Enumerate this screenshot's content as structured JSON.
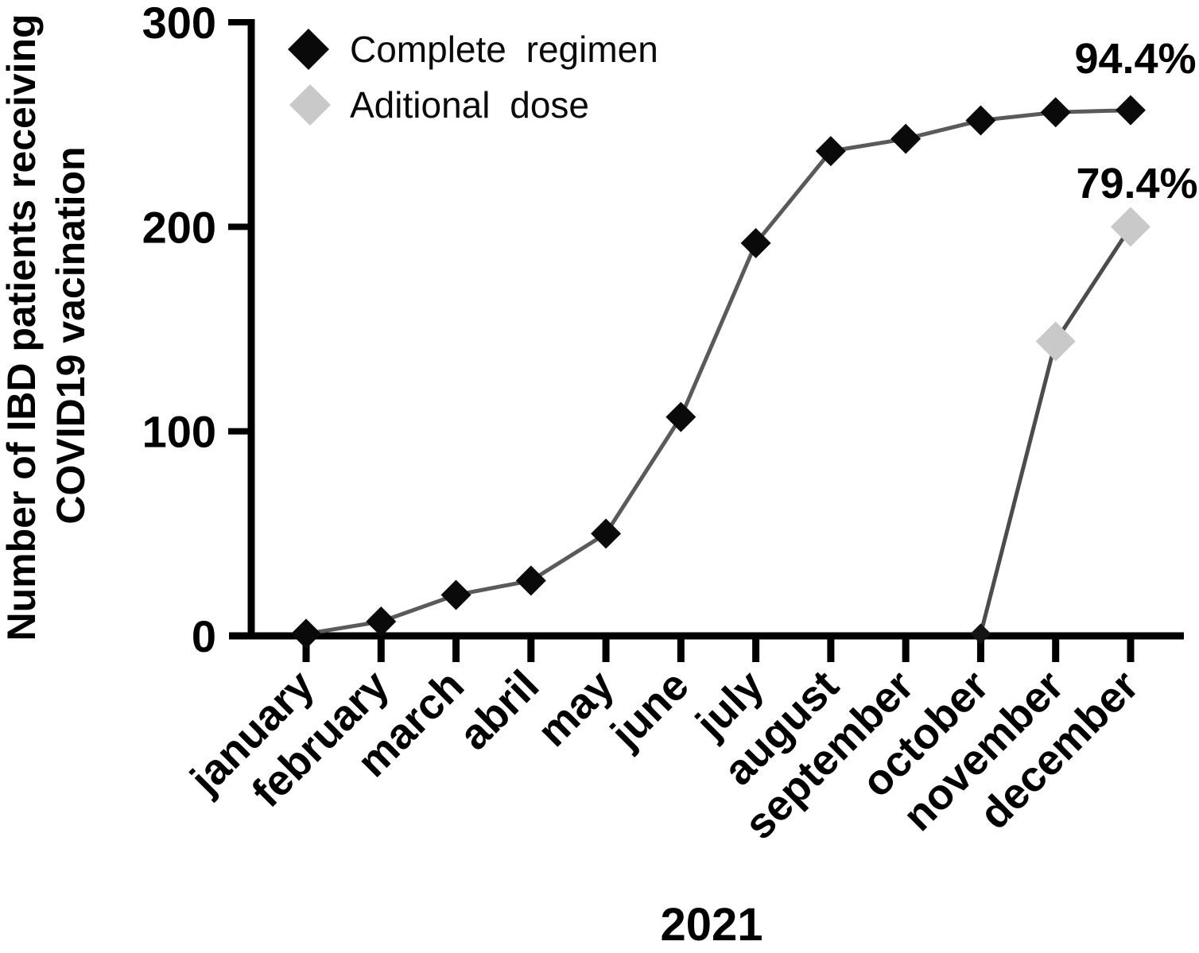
{
  "figure": {
    "background": "#ffffff",
    "axis_color": "#000000"
  },
  "chart_data": {
    "type": "line",
    "title": "",
    "x": {
      "label": "2021",
      "categories": [
        "january",
        "february",
        "march",
        "abril",
        "may",
        "june",
        "july",
        "august",
        "september",
        "october",
        "november",
        "december"
      ],
      "tick_rotation_deg": -45
    },
    "y": {
      "title_line1": "Number of IBD patients receiving",
      "title_line2": "COVID19 vacination",
      "ticks": [
        0,
        100,
        200,
        300
      ],
      "range": [
        0,
        300
      ]
    },
    "grid": false,
    "legend_position": "top-left",
    "series": [
      {
        "name": "Complete regimen",
        "marker": "diamond",
        "marker_color": "#0a0a0a",
        "line_color": "#5a5a5a",
        "marker_half": 19,
        "values": [
          1,
          7,
          20,
          27,
          50,
          107,
          192,
          237,
          243,
          252,
          256,
          257
        ]
      },
      {
        "name": "Aditional dose",
        "marker": "diamond",
        "marker_color": "#c9c9c9",
        "line_color": "#4c4c4c",
        "marker_half": 25,
        "values": [
          null,
          null,
          null,
          null,
          null,
          null,
          null,
          null,
          null,
          1,
          144,
          200
        ],
        "point_overrides": {
          "9": {
            "marker_color": "#141414",
            "marker_half": 13
          }
        }
      }
    ],
    "annotations": [
      {
        "text": "94.4%",
        "series": "Complete regimen",
        "category": "december",
        "value": 257
      },
      {
        "text": "79.4%",
        "series": "Aditional dose",
        "category": "december",
        "value": 200
      }
    ]
  }
}
